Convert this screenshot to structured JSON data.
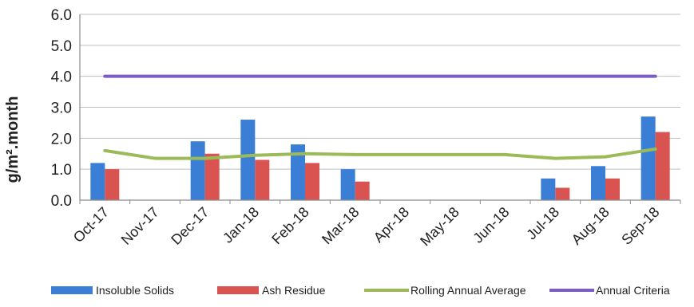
{
  "chart_data": {
    "type": "bar",
    "categories": [
      "Oct-17",
      "Nov-17",
      "Dec-17",
      "Jan-18",
      "Feb-18",
      "Mar-18",
      "Apr-18",
      "May-18",
      "Jun-18",
      "Jul-18",
      "Aug-18",
      "Sep-18"
    ],
    "series": [
      {
        "name": "Insoluble Solids",
        "type": "bar",
        "color": "#3a7fd5",
        "values": [
          1.2,
          null,
          1.9,
          2.6,
          1.8,
          1.0,
          null,
          null,
          null,
          0.7,
          1.1,
          2.7
        ]
      },
      {
        "name": "Ash Residue",
        "type": "bar",
        "color": "#d95450",
        "values": [
          1.0,
          null,
          1.5,
          1.3,
          1.2,
          0.6,
          null,
          null,
          null,
          0.4,
          0.7,
          2.2
        ]
      },
      {
        "name": "Rolling Annual Average",
        "type": "line",
        "color": "#9bbb59",
        "values": [
          1.6,
          1.35,
          1.35,
          1.45,
          1.5,
          1.47,
          1.47,
          1.47,
          1.47,
          1.35,
          1.4,
          1.65
        ]
      },
      {
        "name": "Annual Criteria",
        "type": "line",
        "color": "#7b5cc4",
        "values": [
          4.0,
          4.0,
          4.0,
          4.0,
          4.0,
          4.0,
          4.0,
          4.0,
          4.0,
          4.0,
          4.0,
          4.0
        ]
      }
    ],
    "ylabel": "g/m².month",
    "ylim": [
      0,
      6
    ],
    "yticks": [
      "0.0",
      "1.0",
      "2.0",
      "3.0",
      "4.0",
      "5.0",
      "6.0"
    ],
    "grid": true,
    "legend_position": "bottom"
  }
}
